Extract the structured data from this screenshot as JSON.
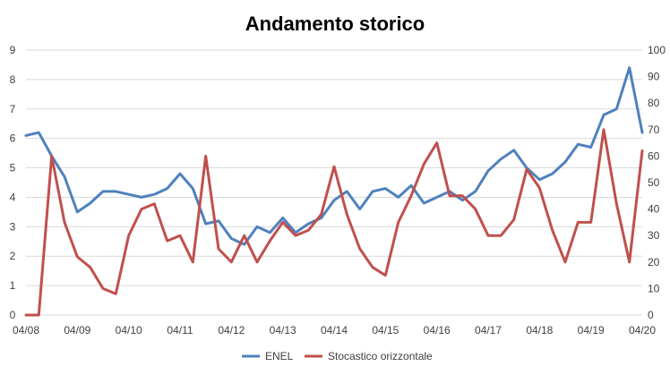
{
  "chart_data": {
    "type": "line",
    "title": "Andamento storico",
    "xlabel": "",
    "ylabel": "",
    "x_ticks": [
      "04/08",
      "04/09",
      "04/10",
      "04/11",
      "04/12",
      "04/13",
      "04/14",
      "04/15",
      "04/16",
      "04/17",
      "04/18",
      "04/19",
      "04/20"
    ],
    "y_left": {
      "min": 0,
      "max": 9,
      "ticks": [
        "0",
        "1",
        "2",
        "3",
        "4",
        "5",
        "6",
        "7",
        "8",
        "9"
      ]
    },
    "y_right": {
      "min": 0,
      "max": 100,
      "ticks": [
        "0",
        "10",
        "20",
        "30",
        "40",
        "50",
        "60",
        "70",
        "80",
        "90",
        "100"
      ]
    },
    "grid": "horizontal",
    "legend_position": "bottom",
    "x": [
      "04/08",
      "07/08",
      "10/08",
      "01/09",
      "04/09",
      "07/09",
      "10/09",
      "01/10",
      "04/10",
      "07/10",
      "10/10",
      "01/11",
      "04/11",
      "07/11",
      "10/11",
      "01/12",
      "04/12",
      "07/12",
      "10/12",
      "01/13",
      "04/13",
      "07/13",
      "10/13",
      "01/14",
      "04/14",
      "07/14",
      "10/14",
      "01/15",
      "04/15",
      "07/15",
      "10/15",
      "01/16",
      "04/16",
      "07/16",
      "10/16",
      "01/17",
      "04/17",
      "07/17",
      "10/17",
      "01/18",
      "04/18",
      "07/18",
      "10/18",
      "01/19",
      "04/19",
      "07/19",
      "10/19",
      "01/20",
      "04/20"
    ],
    "series": [
      {
        "name": "ENEL",
        "axis": "left",
        "color": "#4f81bd",
        "values": [
          6.1,
          6.2,
          5.4,
          4.7,
          3.5,
          3.8,
          4.2,
          4.2,
          4.1,
          4.0,
          4.1,
          4.3,
          4.8,
          4.3,
          3.1,
          3.2,
          2.6,
          2.4,
          3.0,
          2.8,
          3.3,
          2.8,
          3.1,
          3.3,
          3.9,
          4.2,
          3.6,
          4.2,
          4.3,
          4.0,
          4.4,
          3.8,
          4.0,
          4.2,
          3.9,
          4.2,
          4.9,
          5.3,
          5.6,
          5.0,
          4.6,
          4.8,
          5.2,
          5.8,
          5.7,
          6.8,
          7.0,
          8.4,
          6.2
        ]
      },
      {
        "name": "Stocastico orizzontale",
        "axis": "right",
        "color": "#c0504d",
        "values": [
          0,
          0,
          60,
          35,
          22,
          18,
          10,
          8,
          30,
          40,
          42,
          28,
          30,
          20,
          60,
          25,
          20,
          30,
          20,
          28,
          35,
          30,
          32,
          38,
          56,
          38,
          25,
          18,
          15,
          35,
          45,
          57,
          65,
          45,
          45,
          40,
          30,
          30,
          36,
          55,
          48,
          32,
          20,
          35,
          35,
          70,
          42,
          20,
          62
        ]
      }
    ]
  }
}
